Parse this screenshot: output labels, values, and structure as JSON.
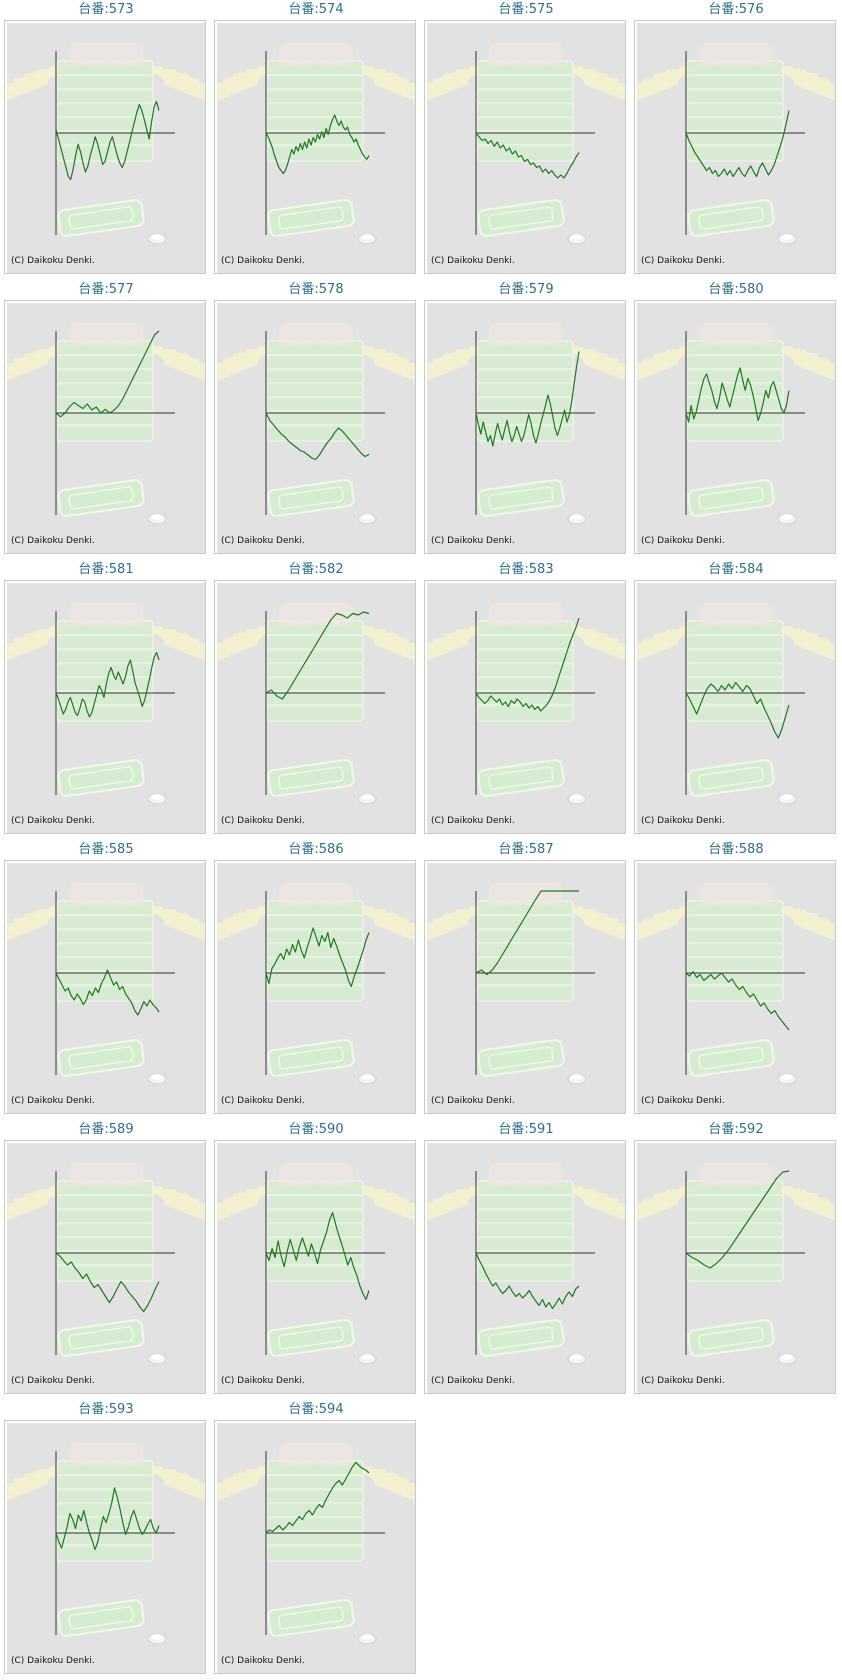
{
  "chart_data": [
    {
      "type": "line",
      "title": "台番:573",
      "copyright": "(C) Daikoku Denki.",
      "y": [
        5,
        -8,
        -20,
        -33,
        -45,
        -58,
        -62,
        -48,
        -30,
        -15,
        -25,
        -40,
        -52,
        -44,
        -30,
        -18,
        -5,
        -15,
        -28,
        -42,
        -38,
        -25,
        -12,
        -5,
        -18,
        -30,
        -40,
        -46,
        -38,
        -25,
        -12,
        2,
        15,
        28,
        38,
        30,
        18,
        5,
        -8,
        15,
        35,
        42,
        30
      ]
    },
    {
      "type": "line",
      "title": "台番:574",
      "copyright": "(C) Daikoku Denki.",
      "y": [
        0,
        -5,
        -12,
        -20,
        -30,
        -38,
        -46,
        -50,
        -54,
        -50,
        -42,
        -32,
        -22,
        -28,
        -18,
        -24,
        -14,
        -22,
        -12,
        -20,
        -8,
        -16,
        -6,
        -12,
        -2,
        -8,
        2,
        -6,
        6,
        -2,
        10,
        18,
        24,
        16,
        10,
        16,
        8,
        4,
        8,
        -2,
        -6,
        -12,
        -8,
        -16,
        -22,
        -28,
        -32,
        -35,
        -30
      ]
    },
    {
      "type": "line",
      "title": "台番:575",
      "copyright": "(C) Daikoku Denki.",
      "y": [
        0,
        -5,
        -10,
        -8,
        -14,
        -10,
        -18,
        -12,
        -20,
        -16,
        -24,
        -20,
        -28,
        -24,
        -32,
        -30,
        -38,
        -35,
        -42,
        -40,
        -46,
        -44,
        -52,
        -48,
        -54,
        -50,
        -56,
        -60,
        -56,
        -60,
        -54,
        -46,
        -40,
        -32,
        -26
      ]
    },
    {
      "type": "line",
      "title": "台番:576",
      "copyright": "(C) Daikoku Denki.",
      "y": [
        0,
        -10,
        -18,
        -26,
        -32,
        -38,
        -44,
        -50,
        -46,
        -54,
        -50,
        -58,
        -54,
        -48,
        -56,
        -50,
        -58,
        -52,
        -46,
        -54,
        -58,
        -50,
        -44,
        -52,
        -58,
        -46,
        -40,
        -48,
        -56,
        -50,
        -42,
        -30,
        -18,
        -5,
        12,
        30
      ]
    },
    {
      "type": "line",
      "title": "台番:577",
      "copyright": "(C) Daikoku Denki.",
      "y": [
        0,
        -5,
        0,
        8,
        14,
        10,
        6,
        12,
        4,
        8,
        0,
        5,
        0,
        4,
        10,
        20,
        32,
        44,
        56,
        68,
        80,
        92,
        104,
        112
      ]
    },
    {
      "type": "line",
      "title": "台番:578",
      "copyright": "(C) Daikoku Denki.",
      "y": [
        0,
        -10,
        -16,
        -22,
        -28,
        -32,
        -38,
        -42,
        -46,
        -50,
        -52,
        -56,
        -60,
        -62,
        -56,
        -48,
        -40,
        -34,
        -26,
        -20,
        -24,
        -30,
        -36,
        -42,
        -48,
        -54,
        -58,
        -55
      ]
    },
    {
      "type": "line",
      "title": "台番:579",
      "copyright": "(C) Daikoku Denki.",
      "y": [
        0,
        -15,
        -28,
        -12,
        -25,
        -38,
        -30,
        -44,
        -28,
        -14,
        -26,
        -36,
        -22,
        -10,
        -26,
        -38,
        -30,
        -18,
        -28,
        -38,
        -30,
        -16,
        -2,
        -14,
        -30,
        -40,
        -28,
        -14,
        -2,
        10,
        24,
        12,
        -4,
        -20,
        -30,
        -20,
        -8,
        4,
        -12,
        -2,
        16,
        40,
        62,
        82
      ]
    },
    {
      "type": "line",
      "title": "台番:580",
      "copyright": "(C) Daikoku Denki.",
      "y": [
        0,
        -12,
        10,
        -8,
        2,
        18,
        34,
        46,
        52,
        40,
        30,
        16,
        6,
        20,
        40,
        30,
        18,
        8,
        22,
        36,
        50,
        60,
        44,
        30,
        46,
        38,
        24,
        8,
        -10,
        0,
        14,
        30,
        20,
        36,
        42,
        30,
        18,
        6,
        0,
        10,
        30
      ]
    },
    {
      "type": "line",
      "title": "台番:581",
      "copyright": "(C) Daikoku Denki.",
      "y": [
        0,
        -8,
        -18,
        -28,
        -22,
        -12,
        -6,
        -16,
        -26,
        -30,
        -20,
        -8,
        -12,
        -24,
        -32,
        -26,
        -14,
        -2,
        10,
        4,
        -6,
        12,
        26,
        34,
        24,
        18,
        28,
        20,
        12,
        22,
        36,
        44,
        30,
        14,
        4,
        -6,
        -18,
        -10,
        4,
        18,
        34,
        48,
        54,
        44
      ]
    },
    {
      "type": "line",
      "title": "台番:582",
      "copyright": "(C) Daikoku Denki.",
      "y": [
        0,
        4,
        -4,
        -8,
        2,
        14,
        26,
        38,
        50,
        62,
        74,
        86,
        98,
        106,
        104,
        100,
        106,
        104,
        108,
        106
      ]
    },
    {
      "type": "line",
      "title": "台番:583",
      "copyright": "(C) Daikoku Denki.",
      "y": [
        0,
        -6,
        -10,
        -14,
        -10,
        -4,
        -8,
        -12,
        -8,
        -16,
        -12,
        -18,
        -10,
        -14,
        -8,
        -12,
        -18,
        -14,
        -20,
        -16,
        -22,
        -18,
        -24,
        -20,
        -16,
        -10,
        -2,
        8,
        20,
        32,
        44,
        56,
        68,
        78,
        88,
        100
      ]
    },
    {
      "type": "line",
      "title": "台番:584",
      "copyright": "(C) Daikoku Denki.",
      "y": [
        0,
        -8,
        -18,
        -28,
        -16,
        -4,
        6,
        12,
        8,
        2,
        10,
        4,
        12,
        6,
        14,
        8,
        2,
        10,
        6,
        -4,
        -14,
        -8,
        -20,
        -30,
        -40,
        -52,
        -60,
        -48,
        -32,
        -16
      ]
    },
    {
      "type": "line",
      "title": "台番:585",
      "copyright": "(C) Daikoku Denki.",
      "y": [
        0,
        -8,
        -16,
        -24,
        -20,
        -30,
        -36,
        -28,
        -34,
        -42,
        -36,
        -24,
        -30,
        -20,
        -26,
        -14,
        -6,
        4,
        -6,
        -16,
        -12,
        -22,
        -18,
        -28,
        -34,
        -40,
        -50,
        -56,
        -48,
        -38,
        -44,
        -36,
        -42,
        -46,
        -52
      ]
    },
    {
      "type": "line",
      "title": "台番:586",
      "copyright": "(C) Daikoku Denki.",
      "y": [
        0,
        -14,
        6,
        12,
        20,
        26,
        18,
        32,
        24,
        38,
        28,
        44,
        30,
        20,
        34,
        46,
        60,
        48,
        36,
        50,
        42,
        54,
        34,
        46,
        36,
        24,
        14,
        4,
        -10,
        -18,
        -4,
        6,
        18,
        30,
        44,
        54
      ]
    },
    {
      "type": "line",
      "title": "台番:587",
      "copyright": "(C) Daikoku Denki.",
      "y": [
        0,
        4,
        -2,
        4,
        14,
        26,
        38,
        50,
        62,
        74,
        86,
        98,
        110,
        122,
        120,
        114,
        118,
        116,
        120,
        118
      ]
    },
    {
      "type": "line",
      "title": "台番:588",
      "copyright": "(C) Daikoku Denki.",
      "y": [
        0,
        -4,
        2,
        -6,
        -2,
        -10,
        -6,
        -2,
        -8,
        -4,
        0,
        -6,
        -12,
        -8,
        -16,
        -22,
        -18,
        -26,
        -32,
        -28,
        -36,
        -44,
        -40,
        -48,
        -54,
        -50,
        -58,
        -64,
        -70,
        -76
      ]
    },
    {
      "type": "line",
      "title": "台番:589",
      "copyright": "(C) Daikoku Denki.",
      "y": [
        0,
        -4,
        -10,
        -16,
        -12,
        -20,
        -26,
        -34,
        -28,
        -38,
        -46,
        -42,
        -50,
        -58,
        -66,
        -58,
        -48,
        -38,
        -44,
        -52,
        -58,
        -64,
        -72,
        -78,
        -70,
        -60,
        -48,
        -38
      ]
    },
    {
      "type": "line",
      "title": "台番:590",
      "copyright": "(C) Daikoku Denki.",
      "y": [
        0,
        -10,
        6,
        -6,
        16,
        -4,
        -18,
        2,
        18,
        4,
        -10,
        8,
        20,
        8,
        -4,
        12,
        0,
        -14,
        4,
        16,
        28,
        44,
        54,
        38,
        24,
        12,
        -2,
        -16,
        -6,
        -20,
        -30,
        -44,
        -54,
        -62,
        -50
      ]
    },
    {
      "type": "line",
      "title": "台番:591",
      "copyright": "(C) Daikoku Denki.",
      "y": [
        0,
        -10,
        -18,
        -28,
        -36,
        -44,
        -40,
        -48,
        -54,
        -50,
        -44,
        -52,
        -58,
        -54,
        -60,
        -56,
        -50,
        -58,
        -64,
        -70,
        -62,
        -72,
        -66,
        -74,
        -68,
        -60,
        -68,
        -58,
        -52,
        -58,
        -48,
        -44
      ]
    },
    {
      "type": "line",
      "title": "台番:592",
      "copyright": "(C) Daikoku Denki.",
      "y": [
        0,
        -6,
        -10,
        -16,
        -20,
        -14,
        -6,
        4,
        16,
        28,
        40,
        52,
        64,
        76,
        88,
        100,
        108,
        112
      ]
    },
    {
      "type": "line",
      "title": "台番:593",
      "copyright": "(C) Daikoku Denki.",
      "y": [
        0,
        -12,
        -20,
        -6,
        8,
        26,
        18,
        6,
        24,
        16,
        30,
        14,
        0,
        -10,
        -22,
        -12,
        6,
        22,
        14,
        26,
        40,
        60,
        48,
        32,
        14,
        -2,
        8,
        22,
        30,
        18,
        6,
        -2,
        4,
        12,
        18,
        6,
        0,
        10
      ]
    },
    {
      "type": "line",
      "title": "台番:594",
      "copyright": "(C) Daikoku Denki.",
      "y": [
        0,
        4,
        2,
        6,
        10,
        4,
        8,
        14,
        10,
        16,
        22,
        18,
        26,
        30,
        24,
        32,
        38,
        34,
        44,
        52,
        60,
        66,
        70,
        64,
        72,
        80,
        88,
        94,
        90,
        86,
        84,
        80
      ]
    }
  ]
}
